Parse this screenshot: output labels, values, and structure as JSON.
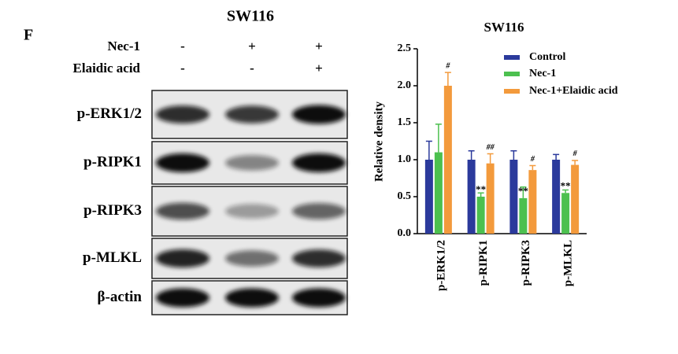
{
  "panel_label": "F",
  "blot": {
    "title": "SW116",
    "conditions": [
      {
        "name": "Nec-1",
        "marks": [
          "-",
          "+",
          "+"
        ]
      },
      {
        "name": "Elaidic acid",
        "marks": [
          "-",
          "-",
          "+"
        ]
      }
    ],
    "rows": [
      "p-ERK1/2",
      "p-RIPK1",
      "p-RIPK3",
      "p-MLKL",
      "β-actin"
    ]
  },
  "chart_data": {
    "type": "bar",
    "title": "SW116",
    "y_label": "Relative density",
    "categories": [
      "p-ERK1/2",
      "p-RIPK1",
      "p-RIPK3",
      "p-MLKL"
    ],
    "series": [
      {
        "name": "Control",
        "color": "#2b3a9c",
        "values": [
          1,
          1,
          1,
          1
        ],
        "errors": [
          0.25,
          0.12,
          0.12,
          0.07
        ]
      },
      {
        "name": "Nec-1",
        "color": "#4cc04f",
        "values": [
          1.1,
          0.5,
          0.48,
          0.55
        ],
        "errors": [
          0.38,
          0.05,
          0.15,
          0.04
        ],
        "significance": [
          null,
          "**",
          "**",
          "**"
        ]
      },
      {
        "name": "Nec-1+Elaidic acid",
        "color": "#f39a3c",
        "values": [
          2.0,
          0.95,
          0.86,
          0.93
        ],
        "errors": [
          0.18,
          0.13,
          0.06,
          0.06
        ],
        "significance": [
          "#",
          "##",
          "#",
          "#"
        ]
      }
    ],
    "ylim": [
      0,
      2.5
    ],
    "yticks": [
      {
        "value": 0,
        "label": "0.0"
      },
      0.5,
      {
        "value": 1,
        "label": "1.0"
      },
      1.5,
      {
        "value": 2,
        "label": "2.0"
      },
      2.5
    ],
    "legend": "upper-right"
  }
}
